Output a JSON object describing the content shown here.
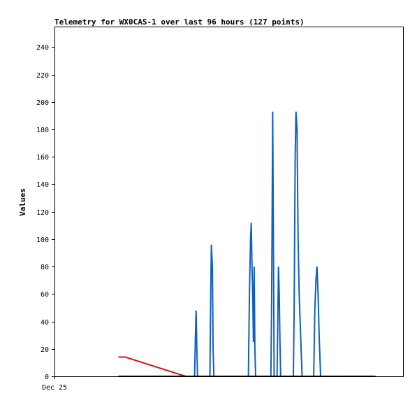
{
  "chart_data": {
    "type": "line",
    "title": "Telemetry for WX0CAS-1 over last 96 hours (127 points)",
    "xlabel": "",
    "ylabel": "Values",
    "x_tick_labels": [
      "Dec 25"
    ],
    "ylim": [
      0,
      255
    ],
    "y_ticks": [
      0,
      20,
      40,
      60,
      80,
      100,
      120,
      140,
      160,
      180,
      200,
      220,
      240
    ],
    "xlim": [
      0,
      96
    ],
    "grid": false,
    "legend": "none",
    "colors": {
      "red": "#dd1111",
      "blue": "#1060c0",
      "black": "#000000"
    },
    "series": [
      {
        "color": "red",
        "points": [
          [
            17.6,
            14
          ],
          [
            19.5,
            14
          ],
          [
            35.5,
            0.5
          ],
          [
            36.2,
            0
          ]
        ]
      },
      {
        "color": "blue",
        "points": [
          [
            38.6,
            0
          ],
          [
            38.8,
            28
          ],
          [
            39.0,
            48
          ],
          [
            39.2,
            20
          ],
          [
            39.4,
            0
          ],
          [
            42.8,
            0
          ],
          [
            43.0,
            48
          ],
          [
            43.2,
            96
          ],
          [
            43.5,
            80
          ],
          [
            43.7,
            20
          ],
          [
            43.9,
            0
          ],
          [
            53.4,
            0
          ],
          [
            53.7,
            60
          ],
          [
            54.0,
            100
          ],
          [
            54.2,
            112
          ],
          [
            54.4,
            80
          ],
          [
            54.6,
            60
          ],
          [
            54.8,
            25
          ],
          [
            55.0,
            80
          ],
          [
            55.2,
            20
          ],
          [
            55.4,
            0
          ],
          [
            59.6,
            0
          ],
          [
            59.8,
            48
          ],
          [
            60.0,
            145
          ],
          [
            60.1,
            193
          ],
          [
            60.3,
            100
          ],
          [
            60.5,
            0
          ],
          [
            61.3,
            0
          ],
          [
            61.5,
            40
          ],
          [
            61.7,
            80
          ],
          [
            61.9,
            60
          ],
          [
            62.1,
            25
          ],
          [
            62.3,
            0
          ],
          [
            65.8,
            0
          ],
          [
            66.0,
            48
          ],
          [
            66.3,
            160
          ],
          [
            66.5,
            193
          ],
          [
            66.8,
            180
          ],
          [
            67.1,
            100
          ],
          [
            67.4,
            60
          ],
          [
            67.8,
            30
          ],
          [
            68.2,
            0
          ],
          [
            71.4,
            0
          ],
          [
            71.7,
            48
          ],
          [
            72.0,
            70
          ],
          [
            72.3,
            80
          ],
          [
            72.6,
            60
          ],
          [
            72.9,
            30
          ],
          [
            73.3,
            0
          ]
        ]
      },
      {
        "color": "black",
        "points": [
          [
            17.6,
            0
          ],
          [
            88.4,
            0
          ]
        ]
      }
    ]
  }
}
